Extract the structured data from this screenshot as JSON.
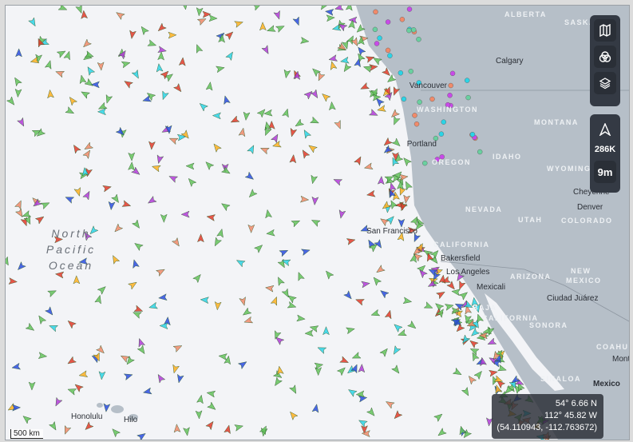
{
  "map_labels": [
    "ALBERTA",
    "SASKATCH",
    "Calgary",
    "Vancouver",
    "WASHINGTON",
    "MONTANA",
    "Portland",
    "IDAHO",
    "OREGON",
    "WYOMING",
    "Cheyenne",
    "Denver",
    "COLORADO",
    "NEVADA",
    "UTAH",
    "San Francisco",
    "CALIFORNIA",
    "Bakersfield",
    "Los Angeles",
    "Mexicali",
    "ARIZONA",
    "NEW",
    "MEXICO",
    "Ciudad Juárez",
    "SONORA",
    "BAJA",
    "CALIFORNIA",
    "COAHUILA",
    "Monterrey",
    "Mexico",
    "SINALOA",
    "Honolulu",
    "Hilo"
  ],
  "ocean_label": [
    "North",
    "Pacific",
    "Ocean"
  ],
  "controls": {
    "vessel_count": "286K",
    "time_filter": "9m"
  },
  "cursor": {
    "lat": "54° 6.66 N",
    "lon": "112° 45.82 W",
    "decimal": "(54.110943, -112.763672)"
  },
  "scale": "500 km"
}
